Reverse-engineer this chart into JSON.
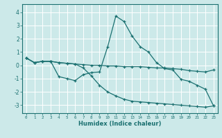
{
  "title": "",
  "xlabel": "Humidex (Indice chaleur)",
  "ylabel": "",
  "background_color": "#cce9e9",
  "grid_color": "#ffffff",
  "line_color": "#1a7070",
  "xlim": [
    -0.5,
    23.5
  ],
  "ylim": [
    -3.6,
    4.6
  ],
  "xticks": [
    0,
    1,
    2,
    3,
    4,
    5,
    6,
    7,
    8,
    9,
    10,
    11,
    12,
    13,
    14,
    15,
    16,
    17,
    18,
    19,
    20,
    21,
    22,
    23
  ],
  "yticks": [
    -3,
    -2,
    -1,
    0,
    1,
    2,
    3,
    4
  ],
  "series1_x": [
    0,
    1,
    2,
    3,
    4,
    5,
    6,
    7,
    8,
    9,
    10,
    11,
    12,
    13,
    14,
    15,
    16,
    17,
    18,
    19,
    20,
    21,
    22,
    23
  ],
  "series1_y": [
    0.55,
    0.2,
    0.3,
    0.3,
    0.2,
    0.15,
    0.1,
    0.05,
    0.0,
    0.0,
    -0.05,
    -0.05,
    -0.1,
    -0.1,
    -0.1,
    -0.15,
    -0.2,
    -0.2,
    -0.25,
    -0.3,
    -0.4,
    -0.45,
    -0.5,
    -0.35
  ],
  "series2_x": [
    0,
    1,
    2,
    3,
    4,
    5,
    6,
    7,
    8,
    9,
    10,
    11,
    12,
    13,
    14,
    15,
    16,
    17,
    18,
    19,
    20,
    21,
    22,
    23
  ],
  "series2_y": [
    0.55,
    0.2,
    0.3,
    0.3,
    -0.85,
    -1.0,
    -1.15,
    -0.7,
    -0.55,
    -0.5,
    1.4,
    3.7,
    3.3,
    2.2,
    1.4,
    1.0,
    0.2,
    -0.25,
    -0.35,
    -1.05,
    -1.2,
    -1.5,
    -1.8,
    -3.05
  ],
  "series3_x": [
    0,
    1,
    2,
    3,
    4,
    5,
    6,
    7,
    8,
    9,
    10,
    11,
    12,
    13,
    14,
    15,
    16,
    17,
    18,
    19,
    20,
    21,
    22,
    23
  ],
  "series3_y": [
    0.55,
    0.2,
    0.3,
    0.3,
    0.2,
    0.15,
    0.1,
    -0.2,
    -0.8,
    -1.5,
    -2.0,
    -2.3,
    -2.55,
    -2.7,
    -2.75,
    -2.8,
    -2.85,
    -2.9,
    -2.95,
    -3.0,
    -3.05,
    -3.1,
    -3.15,
    -3.05
  ]
}
